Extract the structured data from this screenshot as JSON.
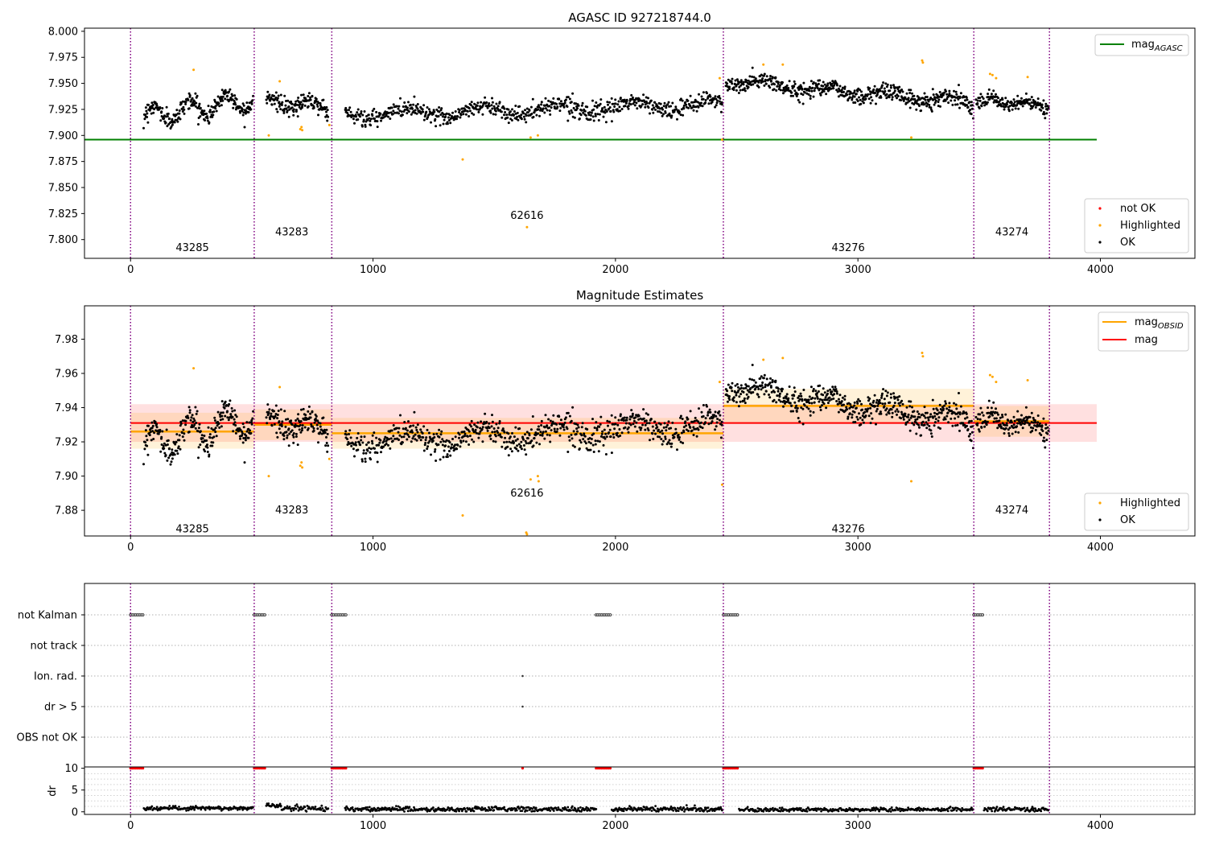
{
  "figure_title": "AGASC ID 927218744.0",
  "colors": {
    "ok": "#000000",
    "highlighted": "#ffa500",
    "not_ok": "#ff0000",
    "agasc": "#008000",
    "mag": "#ff0000",
    "mag_obsid": "#ffa500",
    "boundary": "#800080"
  },
  "chart_data": [
    {
      "type": "scatter",
      "title": "AGASC ID 927218744.0",
      "xlim": [
        -190,
        4390
      ],
      "ylim": [
        7.782,
        8.003
      ],
      "x_ticks": [
        0,
        1000,
        2000,
        3000,
        4000
      ],
      "y_ticks": [
        7.8,
        7.825,
        7.85,
        7.875,
        7.9,
        7.925,
        7.95,
        7.975,
        8.0
      ],
      "y_tick_labels": [
        "7.800",
        "7.825",
        "7.850",
        "7.875",
        "7.900",
        "7.925",
        "7.950",
        "7.975",
        "8.000"
      ],
      "mag_agasc": 7.896,
      "line_legend": {
        "label": "mag",
        "subscript": "AGASC",
        "placement": "top-right"
      },
      "point_legend": {
        "labels": [
          "not OK",
          "Highlighted",
          "OK"
        ],
        "placement": "bottom-right"
      },
      "observation_boundaries": [
        0,
        510,
        830,
        2445,
        3478,
        3790
      ],
      "obsid_labels": [
        {
          "text": "43285",
          "x": 255,
          "y": 7.792
        },
        {
          "text": "43283",
          "x": 665,
          "y": 7.807
        },
        {
          "text": "62616",
          "x": 1635,
          "y": 7.823
        },
        {
          "text": "43276",
          "x": 2960,
          "y": 7.792
        },
        {
          "text": "43274",
          "x": 3635,
          "y": 7.807
        }
      ],
      "ok_segments": [
        {
          "x": [
            55,
            505
          ],
          "baseline": [
            7.918,
            7.935
          ],
          "wave_amp": 0.009,
          "waves": 3,
          "noise": 0.005,
          "n": 260
        },
        {
          "x": [
            560,
            815
          ],
          "baseline": [
            7.932,
            7.928
          ],
          "wave_amp": 0.005,
          "waves": 1.5,
          "noise": 0.005,
          "n": 150
        },
        {
          "x": [
            885,
            2440
          ],
          "baseline": [
            7.92,
            7.93
          ],
          "wave_amp": 0.005,
          "waves": 5,
          "noise": 0.005,
          "n": 720
        },
        {
          "x": [
            2455,
            3475
          ],
          "baseline": [
            7.952,
            7.932
          ],
          "wave_amp": 0.004,
          "waves": 4,
          "noise": 0.005,
          "n": 560
        },
        {
          "x": [
            3488,
            3785
          ],
          "baseline": [
            7.934,
            7.928
          ],
          "wave_amp": 0.003,
          "waves": 2,
          "noise": 0.004,
          "n": 160
        }
      ],
      "highlighted_points": [
        [
          260,
          7.963
        ],
        [
          615,
          7.952
        ],
        [
          570,
          7.9
        ],
        [
          700,
          7.906
        ],
        [
          705,
          7.908
        ],
        [
          708,
          7.905
        ],
        [
          820,
          7.91
        ],
        [
          1370,
          7.877
        ],
        [
          1635,
          7.812
        ],
        [
          1650,
          7.898
        ],
        [
          1680,
          7.9
        ],
        [
          2430,
          7.955
        ],
        [
          2440,
          7.896
        ],
        [
          2610,
          7.968
        ],
        [
          2690,
          7.968
        ],
        [
          3220,
          7.898
        ],
        [
          3265,
          7.972
        ],
        [
          3268,
          7.97
        ],
        [
          3545,
          7.959
        ],
        [
          3555,
          7.958
        ],
        [
          3570,
          7.955
        ],
        [
          3700,
          7.956
        ]
      ]
    },
    {
      "type": "scatter",
      "title": "Magnitude Estimates",
      "xlim": [
        -190,
        4390
      ],
      "ylim": [
        7.865,
        7.9995
      ],
      "x_ticks": [
        0,
        1000,
        2000,
        3000,
        4000
      ],
      "y_ticks": [
        7.88,
        7.9,
        7.92,
        7.94,
        7.96,
        7.98
      ],
      "y_tick_labels": [
        "7.88",
        "7.90",
        "7.92",
        "7.94",
        "7.96",
        "7.98"
      ],
      "mag": 7.931,
      "mag_band": [
        7.92,
        7.942
      ],
      "mag_x_range": [
        0,
        3985
      ],
      "mag_obsid": [
        {
          "x": [
            0,
            510
          ],
          "value": 7.926,
          "band": [
            7.916,
            7.937
          ]
        },
        {
          "x": [
            510,
            830
          ],
          "value": 7.93,
          "band": [
            7.921,
            7.939
          ]
        },
        {
          "x": [
            830,
            2445
          ],
          "value": 7.925,
          "band": [
            7.916,
            7.934
          ]
        },
        {
          "x": [
            2445,
            3478
          ],
          "value": 7.941,
          "band": [
            7.931,
            7.951
          ]
        },
        {
          "x": [
            3478,
            3790
          ],
          "value": 7.932,
          "band": [
            7.923,
            7.941
          ]
        }
      ],
      "line_legend": {
        "labels": [
          "mag",
          "mag"
        ],
        "subscripts": [
          "OBSID",
          ""
        ],
        "placement": "top-right"
      },
      "point_legend": {
        "labels": [
          "Highlighted",
          "OK"
        ],
        "placement": "bottom-right"
      },
      "obsid_labels": [
        {
          "text": "43285",
          "x": 255,
          "y": 7.869
        },
        {
          "text": "43283",
          "x": 665,
          "y": 7.88
        },
        {
          "text": "62616",
          "x": 1635,
          "y": 7.89
        },
        {
          "text": "43276",
          "x": 2960,
          "y": 7.869
        },
        {
          "text": "43274",
          "x": 3635,
          "y": 7.88
        }
      ],
      "highlighted_points": [
        [
          260,
          7.963
        ],
        [
          615,
          7.952
        ],
        [
          570,
          7.9
        ],
        [
          700,
          7.906
        ],
        [
          705,
          7.908
        ],
        [
          708,
          7.905
        ],
        [
          820,
          7.91
        ],
        [
          1370,
          7.877
        ],
        [
          1635,
          7.866
        ],
        [
          1632,
          7.867
        ],
        [
          1650,
          7.898
        ],
        [
          1680,
          7.9
        ],
        [
          1683,
          7.897
        ],
        [
          2430,
          7.955
        ],
        [
          2440,
          7.895
        ],
        [
          2610,
          7.968
        ],
        [
          2690,
          7.969
        ],
        [
          3220,
          7.897
        ],
        [
          3265,
          7.972
        ],
        [
          3268,
          7.97
        ],
        [
          3545,
          7.959
        ],
        [
          3555,
          7.958
        ],
        [
          3570,
          7.955
        ],
        [
          3700,
          7.956
        ]
      ]
    },
    {
      "type": "scatter",
      "xlim": [
        -190,
        4390
      ],
      "x_ticks": [
        0,
        1000,
        2000,
        3000,
        4000
      ],
      "flag_categories": [
        "not Kalman",
        "not track",
        "Ion. rad.",
        "dr > 5",
        "OBS not OK"
      ],
      "flag_points": {
        "not Kalman": [
          [
            0,
            55
          ],
          [
            510,
            560
          ],
          [
            830,
            895
          ],
          [
            1920,
            1985
          ],
          [
            2445,
            2510
          ],
          [
            3478,
            3520
          ]
        ],
        "not track": [],
        "Ion. rad.": [
          [
            1617,
            1617
          ]
        ],
        "dr > 5": [
          [
            1617,
            1617
          ]
        ],
        "OBS not OK": []
      }
    },
    {
      "type": "scatter",
      "ylabel": "dr",
      "xlim": [
        -190,
        4390
      ],
      "ylim": [
        -0.6,
        10.3
      ],
      "x_ticks": [
        0,
        1000,
        2000,
        3000,
        4000
      ],
      "y_ticks": [
        0,
        5,
        10
      ],
      "dr_high_value": 10,
      "dr_high_ranges": [
        [
          0,
          55
        ],
        [
          510,
          560
        ],
        [
          830,
          895
        ],
        [
          1617,
          1617
        ],
        [
          1920,
          1985
        ],
        [
          2445,
          2510
        ],
        [
          3478,
          3520
        ]
      ],
      "dr_low_segments": [
        {
          "x": [
            55,
            505
          ],
          "mean": 0.8,
          "spread": 0.4,
          "n": 150
        },
        {
          "x": [
            560,
            620
          ],
          "mean": 1.5,
          "spread": 0.5,
          "n": 20
        },
        {
          "x": [
            620,
            815
          ],
          "mean": 0.8,
          "spread": 0.5,
          "n": 60
        },
        {
          "x": [
            885,
            1920
          ],
          "mean": 0.6,
          "spread": 0.5,
          "n": 340
        },
        {
          "x": [
            1985,
            2440
          ],
          "mean": 0.6,
          "spread": 0.5,
          "n": 150
        },
        {
          "x": [
            2510,
            3475
          ],
          "mean": 0.5,
          "spread": 0.4,
          "n": 300
        },
        {
          "x": [
            3520,
            3785
          ],
          "mean": 0.6,
          "spread": 0.5,
          "n": 90
        }
      ]
    }
  ]
}
